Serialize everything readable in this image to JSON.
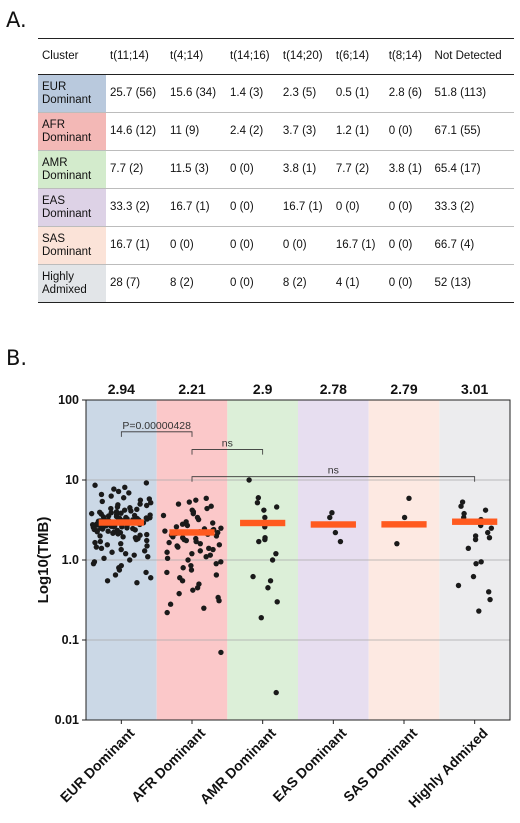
{
  "panel_a_label": "A.",
  "panel_b_label": "B.",
  "table": {
    "headers": [
      "Cluster",
      "t(11;14)",
      "t(4;14)",
      "t(14;16)",
      "t(14;20)",
      "t(6;14)",
      "t(8;14)",
      "Not Detected"
    ],
    "rows": [
      {
        "cluster": "EUR Dominant",
        "color": "#b9c9dd",
        "cells": [
          "25.7 (56)",
          "15.6 (34)",
          "1.4 (3)",
          "2.3 (5)",
          "0.5 (1)",
          "2.8 (6)",
          "51.8 (113)"
        ]
      },
      {
        "cluster": "AFR Dominant",
        "color": "#f3b8b6",
        "cells": [
          "14.6 (12)",
          "11 (9)",
          "2.4 (2)",
          "3.7 (3)",
          "1.2 (1)",
          "0 (0)",
          "67.1 (55)"
        ]
      },
      {
        "cluster": "AMR Dominant",
        "color": "#d3ebcc",
        "cells": [
          "7.7 (2)",
          "11.5 (3)",
          "0 (0)",
          "3.8 (1)",
          "7.7 (2)",
          "3.8 (1)",
          "65.4 (17)"
        ]
      },
      {
        "cluster": "EAS Dominant",
        "color": "#ddd2e6",
        "cells": [
          "33.3 (2)",
          "16.7 (1)",
          "0 (0)",
          "16.7 (1)",
          "0 (0)",
          "0 (0)",
          "33.3 (2)"
        ]
      },
      {
        "cluster": "SAS Dominant",
        "color": "#fbe3d8",
        "cells": [
          "16.7 (1)",
          "0 (0)",
          "0 (0)",
          "0 (0)",
          "16.7 (1)",
          "0 (0)",
          "66.7 (4)"
        ]
      },
      {
        "cluster": "Highly Admixed",
        "color": "#e2e5e8",
        "cells": [
          "28 (7)",
          "8 (2)",
          "0 (0)",
          "8 (2)",
          "4 (1)",
          "0 (0)",
          "52 (13)"
        ]
      }
    ]
  },
  "chart_data": {
    "type": "scatter",
    "ylabel": "Log10(TMB)",
    "yscale": "log",
    "ylim": [
      0.01,
      100
    ],
    "yticks": [
      0.01,
      0.1,
      1.0,
      10,
      100
    ],
    "ytick_labels": [
      "0.01",
      "0.1",
      "1.0",
      "10",
      "100"
    ],
    "categories": [
      "EUR Dominant",
      "AFR Dominant",
      "AMR Dominant",
      "EAS Dominant",
      "SAS Dominant",
      "Highly Admixed"
    ],
    "band_colors": [
      "#cbd8e6",
      "#fbc8c9",
      "#dcefd8",
      "#e7def0",
      "#fde9e2",
      "#ececee"
    ],
    "median_color": "#ff5a1f",
    "medians": [
      2.94,
      2.21,
      2.9,
      2.78,
      2.79,
      3.01
    ],
    "median_labels": [
      "2.94",
      "2.21",
      "2.9",
      "2.78",
      "2.79",
      "3.01"
    ],
    "comparisons": [
      {
        "from": 0,
        "to": 1,
        "label": "P=0.00000428"
      },
      {
        "from": 1,
        "to": 2,
        "label": "ns"
      },
      {
        "from": 1,
        "to": 5,
        "label": "ns"
      }
    ],
    "points": {
      "EUR Dominant": [
        9.2,
        8.6,
        8.1,
        7.7,
        7.2,
        6.9,
        6.6,
        6.3,
        6.0,
        5.8,
        5.6,
        5.4,
        5.2,
        5.0,
        4.9,
        4.8,
        4.6,
        4.5,
        4.4,
        4.3,
        4.2,
        4.1,
        4.0,
        3.95,
        3.9,
        3.85,
        3.8,
        3.75,
        3.7,
        3.65,
        3.6,
        3.55,
        3.5,
        3.45,
        3.4,
        3.38,
        3.35,
        3.32,
        3.3,
        3.27,
        3.25,
        3.22,
        3.2,
        3.18,
        3.15,
        3.12,
        3.1,
        3.08,
        3.05,
        3.02,
        3.0,
        2.98,
        2.96,
        2.94,
        2.92,
        2.9,
        2.88,
        2.86,
        2.84,
        2.82,
        2.8,
        2.78,
        2.76,
        2.74,
        2.72,
        2.7,
        2.68,
        2.66,
        2.64,
        2.62,
        2.6,
        2.58,
        2.56,
        2.54,
        2.52,
        2.5,
        2.47,
        2.44,
        2.41,
        2.38,
        2.35,
        2.32,
        2.29,
        2.26,
        2.23,
        2.2,
        2.16,
        2.12,
        2.08,
        2.04,
        2.0,
        1.95,
        1.9,
        1.85,
        1.8,
        1.75,
        1.7,
        1.65,
        1.6,
        1.55,
        1.5,
        1.45,
        1.4,
        1.35,
        1.3,
        1.25,
        1.2,
        1.15,
        1.1,
        1.05,
        1.0,
        0.95,
        0.9,
        0.85,
        0.8,
        0.75,
        0.7,
        0.65,
        0.6,
        0.55,
        0.52
      ],
      "AFR Dominant": [
        5.9,
        5.6,
        5.3,
        5.0,
        4.7,
        4.4,
        4.2,
        4.0,
        3.8,
        3.6,
        3.4,
        3.2,
        3.0,
        2.9,
        2.8,
        2.7,
        2.6,
        2.5,
        2.45,
        2.4,
        2.35,
        2.3,
        2.25,
        2.2,
        2.15,
        2.1,
        2.05,
        2.0,
        1.95,
        1.9,
        1.85,
        1.8,
        1.75,
        1.7,
        1.65,
        1.6,
        1.55,
        1.5,
        1.45,
        1.4,
        1.35,
        1.3,
        1.25,
        1.2,
        1.15,
        1.1,
        1.05,
        1.0,
        0.95,
        0.9,
        0.85,
        0.8,
        0.75,
        0.7,
        0.65,
        0.6,
        0.55,
        0.5,
        0.45,
        0.42,
        0.38,
        0.34,
        0.31,
        0.28,
        0.25,
        0.22,
        0.07
      ],
      "AMR Dominant": [
        10.0,
        6.0,
        5.2,
        4.6,
        4.2,
        3.4,
        2.6,
        1.9,
        1.8,
        1.7,
        1.2,
        1.0,
        0.62,
        0.55,
        0.45,
        0.3,
        0.19,
        0.022
      ],
      "EAS Dominant": [
        3.9,
        3.4,
        2.8,
        2.2,
        1.7
      ],
      "SAS Dominant": [
        5.9,
        3.4,
        1.6
      ],
      "Highly Admixed": [
        5.3,
        4.7,
        4.2,
        3.8,
        3.4,
        3.2,
        3.0,
        2.7,
        2.5,
        2.2,
        2.0,
        1.9,
        1.8,
        1.4,
        0.95,
        0.9,
        0.62,
        0.48,
        0.4,
        0.32,
        0.23
      ]
    }
  }
}
